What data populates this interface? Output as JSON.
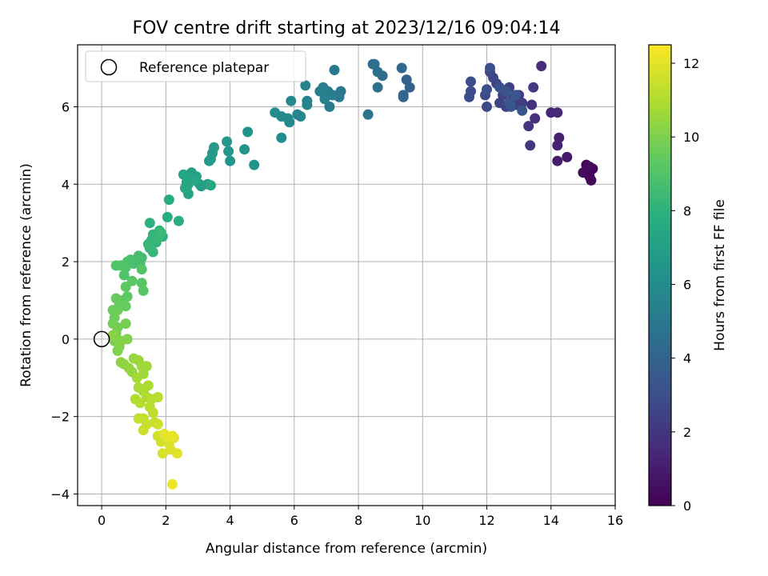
{
  "chart_data": {
    "type": "scatter",
    "title": "FOV centre drift starting at 2023/12/16 09:04:14",
    "xlabel": "Angular distance from reference (arcmin)",
    "ylabel": "Rotation from reference (arcmin)",
    "xlim": [
      -0.75,
      16.0
    ],
    "ylim": [
      -4.3,
      7.6
    ],
    "xticks": [
      0,
      2,
      4,
      6,
      8,
      10,
      12,
      14,
      16
    ],
    "yticks": [
      -4,
      -2,
      0,
      2,
      4,
      6
    ],
    "grid": true,
    "legend": {
      "placement": "top-left",
      "entries": [
        "Reference platepar"
      ]
    },
    "colorbar": {
      "label": "Hours from first FF file",
      "min": 0,
      "max": 12.5,
      "ticks": [
        0,
        2,
        4,
        6,
        8,
        10,
        12
      ],
      "colormap": "viridis"
    },
    "reference_point": {
      "x": 0,
      "y": 0
    },
    "series": [
      {
        "points": [
          [
            15.2,
            4.3,
            0.0
          ],
          [
            15.1,
            4.5,
            0.1
          ],
          [
            15.3,
            4.4,
            0.15
          ],
          [
            15.2,
            4.2,
            0.2
          ],
          [
            15.1,
            4.35,
            0.25
          ],
          [
            15.25,
            4.1,
            0.3
          ],
          [
            15.0,
            4.3,
            0.35
          ],
          [
            15.2,
            4.45,
            0.4
          ],
          [
            14.5,
            4.7,
            0.9
          ],
          [
            14.2,
            4.6,
            1.0
          ],
          [
            14.25,
            5.2,
            1.1
          ],
          [
            14.2,
            5.0,
            1.2
          ],
          [
            14.0,
            5.85,
            1.3
          ],
          [
            14.2,
            5.85,
            1.4
          ],
          [
            13.7,
            7.05,
            1.6
          ],
          [
            13.5,
            5.7,
            1.7
          ],
          [
            13.4,
            6.05,
            1.8
          ],
          [
            13.3,
            5.5,
            1.9
          ],
          [
            13.35,
            5.0,
            2.0
          ],
          [
            13.45,
            6.5,
            2.1
          ],
          [
            13.1,
            6.1,
            2.2
          ],
          [
            13.0,
            6.3,
            2.25
          ],
          [
            12.9,
            6.05,
            2.3
          ],
          [
            12.8,
            6.2,
            2.35
          ],
          [
            12.7,
            6.5,
            2.4
          ],
          [
            12.6,
            6.0,
            2.45
          ],
          [
            12.5,
            6.3,
            2.5
          ],
          [
            12.4,
            6.1,
            2.55
          ],
          [
            12.3,
            6.6,
            2.6
          ],
          [
            12.2,
            6.75,
            2.65
          ],
          [
            12.1,
            6.9,
            2.7
          ],
          [
            12.0,
            6.0,
            2.75
          ],
          [
            11.95,
            6.3,
            2.8
          ],
          [
            11.5,
            6.4,
            2.85
          ],
          [
            11.45,
            6.25,
            2.9
          ],
          [
            11.5,
            6.65,
            2.95
          ],
          [
            12.0,
            6.45,
            3.0
          ],
          [
            12.1,
            7.0,
            3.05
          ],
          [
            12.4,
            6.5,
            3.1
          ],
          [
            12.6,
            6.4,
            3.15
          ],
          [
            12.75,
            6.0,
            3.2
          ],
          [
            12.9,
            6.3,
            3.25
          ],
          [
            13.1,
            5.9,
            3.3
          ],
          [
            12.7,
            6.1,
            3.35
          ],
          [
            9.6,
            6.5,
            3.8
          ],
          [
            9.5,
            6.7,
            3.9
          ],
          [
            9.4,
            6.3,
            4.0
          ],
          [
            9.4,
            6.25,
            4.1
          ],
          [
            9.35,
            7.0,
            4.2
          ],
          [
            8.75,
            6.8,
            4.4
          ],
          [
            8.6,
            6.9,
            4.5
          ],
          [
            8.5,
            7.1,
            4.55
          ],
          [
            8.45,
            7.1,
            4.6
          ],
          [
            8.6,
            6.5,
            4.7
          ],
          [
            8.3,
            5.8,
            4.8
          ],
          [
            7.45,
            6.4,
            5.0
          ],
          [
            7.4,
            6.25,
            5.05
          ],
          [
            7.25,
            6.95,
            5.1
          ],
          [
            7.2,
            6.3,
            5.15
          ],
          [
            7.1,
            6.0,
            5.2
          ],
          [
            7.05,
            6.4,
            5.25
          ],
          [
            6.9,
            6.5,
            5.3
          ],
          [
            6.8,
            6.4,
            5.35
          ],
          [
            6.95,
            6.2,
            5.4
          ],
          [
            6.4,
            6.15,
            5.5
          ],
          [
            6.35,
            6.55,
            5.55
          ],
          [
            6.4,
            6.05,
            5.6
          ],
          [
            6.1,
            5.8,
            5.7
          ],
          [
            6.2,
            5.75,
            5.75
          ],
          [
            5.9,
            6.15,
            5.8
          ],
          [
            5.85,
            5.6,
            5.85
          ],
          [
            5.8,
            5.7,
            5.9
          ],
          [
            5.6,
            5.75,
            5.95
          ],
          [
            5.4,
            5.85,
            6.0
          ],
          [
            5.6,
            5.2,
            6.05
          ],
          [
            4.75,
            4.5,
            6.3
          ],
          [
            4.55,
            5.35,
            6.35
          ],
          [
            4.45,
            4.9,
            6.4
          ],
          [
            4.0,
            4.6,
            6.5
          ],
          [
            3.9,
            5.1,
            6.55
          ],
          [
            3.95,
            4.85,
            6.6
          ],
          [
            3.5,
            4.95,
            6.7
          ],
          [
            3.45,
            4.8,
            6.75
          ],
          [
            3.35,
            4.6,
            6.8
          ],
          [
            3.4,
            4.65,
            6.85
          ],
          [
            3.3,
            4.0,
            6.9
          ],
          [
            3.1,
            3.95,
            6.95
          ],
          [
            3.05,
            4.0,
            7.0
          ],
          [
            2.95,
            4.2,
            7.05
          ],
          [
            2.8,
            4.3,
            7.1
          ],
          [
            2.7,
            4.2,
            7.15
          ],
          [
            2.65,
            4.05,
            7.2
          ],
          [
            2.7,
            3.75,
            7.25
          ],
          [
            2.6,
            3.9,
            7.3
          ],
          [
            2.55,
            4.25,
            7.35
          ],
          [
            2.9,
            4.1,
            7.4
          ],
          [
            2.7,
            4.0,
            7.45
          ],
          [
            2.65,
            3.9,
            7.5
          ],
          [
            3.4,
            3.97,
            7.55
          ],
          [
            2.1,
            3.6,
            7.7
          ],
          [
            2.05,
            3.15,
            7.75
          ],
          [
            2.4,
            3.05,
            7.8
          ],
          [
            1.5,
            3.0,
            7.9
          ],
          [
            1.9,
            2.65,
            7.95
          ],
          [
            1.8,
            2.8,
            8.0
          ],
          [
            1.7,
            2.5,
            8.05
          ],
          [
            1.6,
            2.7,
            8.1
          ],
          [
            1.55,
            2.55,
            8.15
          ],
          [
            1.5,
            2.35,
            8.2
          ],
          [
            1.45,
            2.45,
            8.25
          ],
          [
            1.6,
            2.25,
            8.3
          ],
          [
            1.75,
            2.6,
            8.35
          ],
          [
            1.85,
            2.75,
            8.4
          ],
          [
            1.25,
            2.1,
            8.6
          ],
          [
            1.15,
            2.15,
            8.65
          ],
          [
            1.2,
            1.95,
            8.7
          ],
          [
            1.0,
            1.95,
            8.75
          ],
          [
            0.9,
            2.05,
            8.8
          ],
          [
            0.8,
            2.0,
            8.85
          ],
          [
            0.75,
            1.85,
            8.9
          ],
          [
            0.7,
            1.65,
            8.95
          ],
          [
            0.45,
            1.9,
            9.0
          ],
          [
            0.6,
            1.9,
            9.05
          ],
          [
            1.25,
            1.8,
            9.1
          ],
          [
            1.25,
            1.45,
            9.15
          ],
          [
            1.3,
            1.25,
            9.2
          ],
          [
            0.95,
            1.5,
            9.25
          ],
          [
            0.75,
            1.35,
            9.3
          ],
          [
            0.8,
            1.1,
            9.35
          ],
          [
            0.65,
            1.0,
            9.4
          ],
          [
            0.55,
            0.9,
            9.45
          ],
          [
            0.75,
            0.85,
            9.5
          ],
          [
            0.45,
            1.05,
            9.55
          ],
          [
            0.5,
            0.75,
            9.6
          ],
          [
            0.35,
            0.75,
            9.65
          ],
          [
            0.4,
            0.55,
            9.7
          ],
          [
            0.35,
            0.4,
            9.75
          ],
          [
            0.5,
            0.3,
            9.8
          ],
          [
            0.75,
            0.4,
            9.85
          ],
          [
            0.45,
            0.15,
            9.9
          ],
          [
            0.4,
            -0.05,
            9.95
          ],
          [
            0.5,
            -0.3,
            10.0
          ],
          [
            0.55,
            -0.2,
            10.05
          ],
          [
            0.8,
            0.0,
            10.1
          ],
          [
            0.6,
            -0.05,
            10.15
          ],
          [
            0.35,
            0.1,
            10.2
          ],
          [
            0.6,
            -0.6,
            10.3
          ],
          [
            0.7,
            -0.65,
            10.35
          ],
          [
            0.85,
            -0.75,
            10.4
          ],
          [
            0.95,
            -0.85,
            10.45
          ],
          [
            1.0,
            -0.5,
            10.5
          ],
          [
            1.15,
            -0.55,
            10.55
          ],
          [
            1.25,
            -0.7,
            10.6
          ],
          [
            1.3,
            -0.9,
            10.65
          ],
          [
            1.4,
            -0.7,
            10.7
          ],
          [
            1.1,
            -1.0,
            10.75
          ],
          [
            1.15,
            -1.25,
            10.8
          ],
          [
            1.3,
            -1.35,
            10.85
          ],
          [
            1.45,
            -1.2,
            10.9
          ],
          [
            1.4,
            -1.5,
            10.95
          ],
          [
            1.05,
            -1.55,
            11.0
          ],
          [
            1.2,
            -1.65,
            11.05
          ],
          [
            1.55,
            -1.55,
            11.1
          ],
          [
            1.75,
            -1.5,
            11.15
          ],
          [
            1.5,
            -1.75,
            11.2
          ],
          [
            1.6,
            -1.9,
            11.25
          ],
          [
            1.3,
            -2.05,
            11.3
          ],
          [
            1.15,
            -2.05,
            11.35
          ],
          [
            1.65,
            -2.15,
            11.4
          ],
          [
            1.4,
            -2.2,
            11.45
          ],
          [
            1.3,
            -2.35,
            11.5
          ],
          [
            1.75,
            -2.2,
            11.55
          ],
          [
            1.75,
            -2.5,
            11.6
          ],
          [
            1.85,
            -2.65,
            11.65
          ],
          [
            2.0,
            -2.55,
            11.7
          ],
          [
            2.1,
            -2.7,
            11.75
          ],
          [
            1.9,
            -2.95,
            11.8
          ],
          [
            2.15,
            -2.85,
            11.85
          ],
          [
            2.25,
            -2.55,
            11.9
          ],
          [
            2.35,
            -2.95,
            11.95
          ],
          [
            1.95,
            -2.45,
            12.0
          ],
          [
            2.1,
            -2.55,
            12.05
          ],
          [
            2.2,
            -2.5,
            12.1
          ],
          [
            2.2,
            -3.75,
            12.2
          ]
        ]
      }
    ]
  }
}
